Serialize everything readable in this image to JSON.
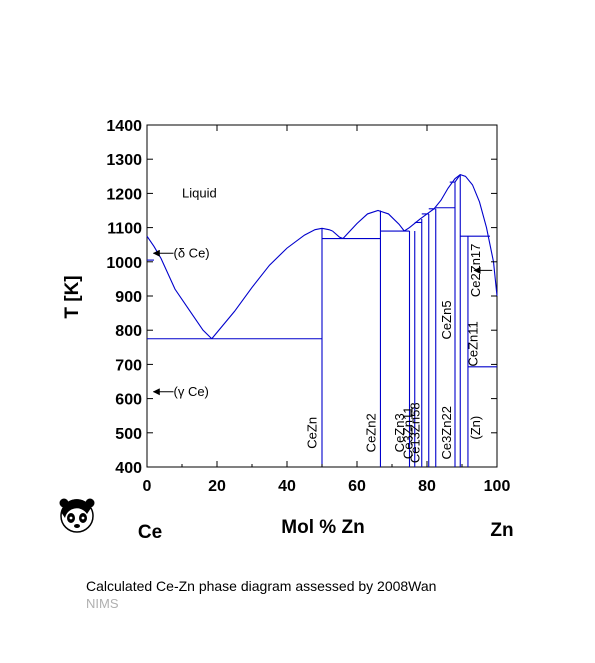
{
  "caption": "Calculated Ce-Zn phase diagram assessed by 2008Wan",
  "source": "NIMS",
  "logo_icon": "panda-icon",
  "line_color": "#0000cc",
  "chart_data": {
    "type": "line",
    "xlabel": "Mol % Zn",
    "ylabel": "T [K]",
    "xlim": [
      0,
      100
    ],
    "ylim": [
      400,
      1400
    ],
    "x_ticks": [
      0,
      20,
      40,
      60,
      80,
      100
    ],
    "y_ticks": [
      400,
      500,
      600,
      700,
      800,
      900,
      1000,
      1100,
      1200,
      1300,
      1400
    ],
    "left_end_label": "Ce",
    "right_end_label": "Zn",
    "series": [
      {
        "values": [
          [
            0,
            1075
          ],
          [
            2,
            1045
          ],
          [
            4,
            1010
          ],
          [
            8,
            920
          ],
          [
            12,
            860
          ],
          [
            16,
            800
          ],
          [
            18.5,
            775
          ]
        ]
      },
      {
        "values": [
          [
            18.5,
            775
          ],
          [
            25,
            855
          ],
          [
            30,
            925
          ],
          [
            35,
            990
          ],
          [
            40,
            1040
          ],
          [
            45,
            1078
          ],
          [
            48,
            1094
          ],
          [
            50,
            1098
          ],
          [
            52,
            1094
          ],
          [
            53,
            1090
          ]
        ]
      },
      {
        "values": [
          [
            53,
            1090
          ],
          [
            55,
            1072
          ],
          [
            56,
            1068
          ]
        ]
      },
      {
        "values": [
          [
            56,
            1068
          ],
          [
            58,
            1090
          ],
          [
            60,
            1112
          ],
          [
            63,
            1140
          ],
          [
            66,
            1150
          ],
          [
            69,
            1140
          ],
          [
            72,
            1110
          ],
          [
            73.5,
            1090
          ]
        ]
      },
      {
        "values": [
          [
            73.5,
            1090
          ],
          [
            75,
            1100
          ],
          [
            78,
            1125
          ],
          [
            80,
            1140
          ],
          [
            82,
            1155
          ],
          [
            84,
            1180
          ],
          [
            86,
            1215
          ],
          [
            88,
            1243
          ],
          [
            89.5,
            1255
          ],
          [
            91,
            1250
          ],
          [
            93,
            1225
          ],
          [
            95,
            1175
          ],
          [
            97,
            1100
          ],
          [
            99,
            1000
          ],
          [
            100,
            900
          ]
        ]
      },
      {
        "values": [
          [
            0,
            775
          ],
          [
            50,
            775
          ]
        ]
      },
      {
        "values": [
          [
            0,
            1005
          ],
          [
            2,
            1005
          ]
        ]
      },
      {
        "values": [
          [
            50,
            400
          ],
          [
            50,
            1098
          ]
        ]
      },
      {
        "values": [
          [
            50,
            1068
          ],
          [
            66.7,
            1068
          ]
        ]
      },
      {
        "values": [
          [
            66.7,
            400
          ],
          [
            66.7,
            1150
          ]
        ]
      },
      {
        "values": [
          [
            66.7,
            1090
          ],
          [
            75,
            1090
          ]
        ]
      },
      {
        "values": [
          [
            75,
            400
          ],
          [
            75,
            1090
          ]
        ]
      },
      {
        "values": [
          [
            76.5,
            400
          ],
          [
            76.5,
            1090
          ]
        ]
      },
      {
        "values": [
          [
            76.5,
            1115
          ],
          [
            78.5,
            1115
          ]
        ]
      },
      {
        "values": [
          [
            78.5,
            400
          ],
          [
            78.5,
            1125
          ]
        ]
      },
      {
        "values": [
          [
            78.5,
            1140
          ],
          [
            80.5,
            1140
          ]
        ]
      },
      {
        "values": [
          [
            80.5,
            400
          ],
          [
            80.5,
            1140
          ]
        ]
      },
      {
        "values": [
          [
            80.5,
            1155
          ],
          [
            82.5,
            1155
          ]
        ]
      },
      {
        "values": [
          [
            82.5,
            400
          ],
          [
            82.5,
            1155
          ]
        ]
      },
      {
        "values": [
          [
            82.5,
            1158
          ],
          [
            88,
            1158
          ]
        ]
      },
      {
        "values": [
          [
            88,
            400
          ],
          [
            88,
            1233
          ]
        ]
      },
      {
        "values": [
          [
            86.5,
            1233
          ],
          [
            88,
            1233
          ]
        ]
      },
      {
        "values": [
          [
            88,
            1233
          ],
          [
            89.5,
            1255
          ]
        ]
      },
      {
        "values": [
          [
            89.5,
            400
          ],
          [
            89.5,
            1255
          ]
        ]
      },
      {
        "values": [
          [
            91.7,
            400
          ],
          [
            91.7,
            1075
          ]
        ]
      },
      {
        "values": [
          [
            89.5,
            1075
          ],
          [
            98,
            1075
          ]
        ]
      },
      {
        "values": [
          [
            91.7,
            693
          ],
          [
            100,
            693
          ]
        ]
      }
    ],
    "labels": [
      {
        "text": "Liquid",
        "x": 10,
        "y": 1200,
        "rotate": false
      },
      {
        "text": "(δ Ce)",
        "x": 3,
        "y": 1025,
        "rotate": false,
        "arrow": true
      },
      {
        "text": "(γ Ce)",
        "x": 3,
        "y": 620,
        "rotate": false,
        "arrow": true
      },
      {
        "text": "CeZn",
        "x": 48.5,
        "y": 500,
        "rotate": true
      },
      {
        "text": "CeZn2",
        "x": 65.3,
        "y": 500,
        "rotate": true
      },
      {
        "text": "CeZn3",
        "x": 73.5,
        "y": 500,
        "rotate": true
      },
      {
        "text": "Ce3Zn11",
        "x": 75.8,
        "y": 500,
        "rotate": true
      },
      {
        "text": "Ce13Zn58",
        "x": 77.8,
        "y": 500,
        "rotate": true
      },
      {
        "text": "Ce3Zn22",
        "x": 86.8,
        "y": 500,
        "rotate": true
      },
      {
        "text": "CeZn5",
        "x": 86.8,
        "y": 830,
        "rotate": true
      },
      {
        "text": "CeZn11",
        "x": 94.5,
        "y": 760,
        "rotate": true
      },
      {
        "text": "Ce2Zn17",
        "x": 95.2,
        "y": 975,
        "rotate": true,
        "arrow": true
      },
      {
        "text": "(Zn)",
        "x": 95.2,
        "y": 515,
        "rotate": true
      }
    ]
  }
}
